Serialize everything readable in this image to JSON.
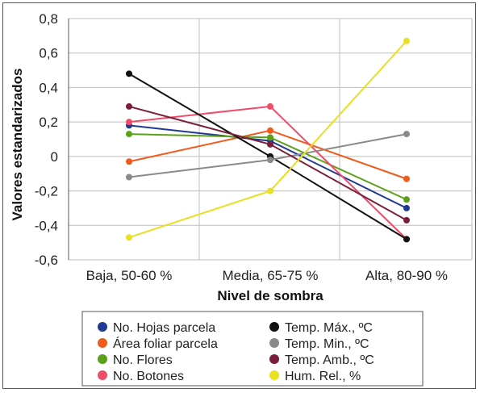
{
  "chart_data": {
    "type": "line",
    "categories": [
      "Baja, 50-60 %",
      "Media, 65-75 %",
      "Alta, 80-90 %"
    ],
    "xlabel": "Nivel de sombra",
    "ylabel": "Valores estandarizados",
    "ylim": [
      -0.6,
      0.8
    ],
    "yticks": [
      "0,8",
      "0,6",
      "0,4",
      "0,2",
      "0",
      "-0,2",
      "-0,4",
      "-0,6"
    ],
    "ytick_values": [
      0.8,
      0.6,
      0.4,
      0.2,
      0,
      -0.2,
      -0.4,
      -0.6
    ],
    "grid": true,
    "legend_placement": "bottom",
    "series": [
      {
        "name": "No. Hojas parcela",
        "color": "#1f3a93",
        "values": [
          0.18,
          0.09,
          -0.3
        ]
      },
      {
        "name": "Área foliar parcela",
        "color": "#f05a1a",
        "values": [
          -0.03,
          0.15,
          -0.13
        ]
      },
      {
        "name": "No. Flores",
        "color": "#5aa019",
        "values": [
          0.13,
          0.11,
          -0.25
        ]
      },
      {
        "name": "No. Botones",
        "color": "#ee4d6a",
        "values": [
          0.2,
          0.29,
          -0.48
        ]
      },
      {
        "name": "Temp. Máx., ºC",
        "color": "#111111",
        "values": [
          0.48,
          0.0,
          -0.48
        ]
      },
      {
        "name": "Temp. Min., ºC",
        "color": "#8a8a8a",
        "values": [
          -0.12,
          -0.02,
          0.13
        ]
      },
      {
        "name": "Temp. Amb., ºC",
        "color": "#7a1f3a",
        "values": [
          0.29,
          0.07,
          -0.37
        ]
      },
      {
        "name": "Hum. Rel., %",
        "color": "#e8e020",
        "values": [
          -0.47,
          -0.2,
          0.67
        ]
      }
    ]
  }
}
